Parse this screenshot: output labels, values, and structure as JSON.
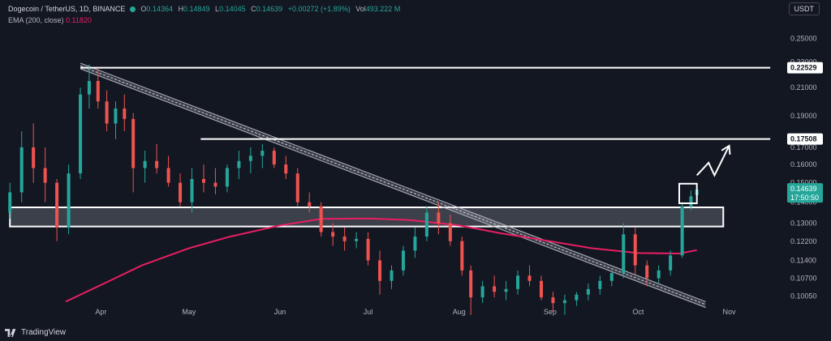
{
  "header": {
    "symbol": "Dogecoin / TetherUS, 1D, BINANCE",
    "open_label": "O",
    "open": "0.14364",
    "high_label": "H",
    "high": "0.14849",
    "low_label": "L",
    "low": "0.14045",
    "close_label": "C",
    "close": "0.14639",
    "change": "+0.00272 (+1.89%)",
    "vol_label": "Vol",
    "vol": "493.222 M",
    "ema_label": "EMA (200, close)",
    "ema_value": "0.11820"
  },
  "currency": "USDT",
  "brand": "TradingView",
  "colors": {
    "background": "#131722",
    "up": "#26a69a",
    "down": "#ef5350",
    "ema": "#e91e63",
    "level": "#ffffff",
    "zone_fill": "#d1d4dc"
  },
  "chart_data": {
    "type": "candlestick",
    "symbol": "Dogecoin / TetherUS, 1D, BINANCE",
    "x_tick_labels": [
      "Apr",
      "May",
      "Jun",
      "Jul",
      "Aug",
      "Sep",
      "Oct",
      "Nov"
    ],
    "y_axis_scale": "log",
    "y_tick_labels": [
      "0.25000",
      "0.23000",
      "0.21000",
      "0.19000",
      "0.17000",
      "0.16000",
      "0.15000",
      "0.14000",
      "0.13000",
      "0.12200",
      "0.11400",
      "0.10700",
      "0.10050"
    ],
    "ylim": [
      0.0975,
      0.265
    ],
    "price_labels": [
      {
        "value": 0.22529,
        "text": "0.22529"
      },
      {
        "value": 0.17508,
        "text": "0.17508"
      }
    ],
    "current_price": {
      "value": 0.14639,
      "text": "0.14639",
      "countdown": "17:50:50"
    },
    "horizontal_levels": [
      {
        "value": 0.22529,
        "from": "2024-03-25",
        "to": "2024-11-15"
      },
      {
        "value": 0.17508,
        "from": "2024-05-05",
        "to": "2024-11-15"
      }
    ],
    "support_zone": {
      "from": "2024-03-01",
      "to": "2024-10-30",
      "upper": 0.1375,
      "lower": 0.1285
    },
    "breakout_box": {
      "from": "2024-10-15",
      "to": "2024-10-21",
      "upper": 0.1495,
      "lower": 0.1395
    },
    "descending_channel": [
      {
        "from": [
          "2024-03-25",
          0.229
        ],
        "to": [
          "2024-10-24",
          0.0985
        ]
      },
      {
        "from": [
          "2024-03-25",
          0.2245
        ],
        "to": [
          "2024-10-24",
          0.0965
        ]
      }
    ],
    "projection_arrow": [
      [
        "2024-10-21",
        0.154
      ],
      [
        "2024-10-25",
        0.161
      ],
      [
        "2024-10-27",
        0.154
      ],
      [
        "2024-11-01",
        0.171
      ]
    ],
    "ema_200": [
      [
        "2024-03-20",
        0.0985
      ],
      [
        "2024-04-01",
        0.1045
      ],
      [
        "2024-04-15",
        0.112
      ],
      [
        "2024-05-01",
        0.119
      ],
      [
        "2024-05-15",
        0.124
      ],
      [
        "2024-06-01",
        0.129
      ],
      [
        "2024-06-15",
        0.132
      ],
      [
        "2024-07-01",
        0.1322
      ],
      [
        "2024-07-15",
        0.1315
      ],
      [
        "2024-08-01",
        0.129
      ],
      [
        "2024-08-15",
        0.1255
      ],
      [
        "2024-09-01",
        0.122
      ],
      [
        "2024-09-15",
        0.119
      ],
      [
        "2024-10-01",
        0.117
      ],
      [
        "2024-10-15",
        0.1168
      ],
      [
        "2024-10-21",
        0.1182
      ]
    ],
    "candles": [
      [
        "2024-03-01",
        0.135,
        0.15,
        0.132,
        0.145
      ],
      [
        "2024-03-05",
        0.145,
        0.18,
        0.14,
        0.17
      ],
      [
        "2024-03-09",
        0.17,
        0.185,
        0.15,
        0.158
      ],
      [
        "2024-03-13",
        0.158,
        0.17,
        0.14,
        0.15
      ],
      [
        "2024-03-17",
        0.15,
        0.152,
        0.122,
        0.128
      ],
      [
        "2024-03-21",
        0.128,
        0.16,
        0.125,
        0.155
      ],
      [
        "2024-03-25",
        0.155,
        0.21,
        0.152,
        0.205
      ],
      [
        "2024-03-28",
        0.205,
        0.228,
        0.195,
        0.215
      ],
      [
        "2024-03-31",
        0.215,
        0.225,
        0.195,
        0.2
      ],
      [
        "2024-04-03",
        0.2,
        0.208,
        0.18,
        0.185
      ],
      [
        "2024-04-06",
        0.185,
        0.2,
        0.175,
        0.195
      ],
      [
        "2024-04-09",
        0.195,
        0.205,
        0.18,
        0.188
      ],
      [
        "2024-04-12",
        0.188,
        0.192,
        0.145,
        0.158
      ],
      [
        "2024-04-16",
        0.158,
        0.168,
        0.15,
        0.162
      ],
      [
        "2024-04-20",
        0.162,
        0.172,
        0.155,
        0.158
      ],
      [
        "2024-04-24",
        0.158,
        0.165,
        0.148,
        0.15
      ],
      [
        "2024-04-28",
        0.15,
        0.155,
        0.138,
        0.14
      ],
      [
        "2024-05-02",
        0.14,
        0.158,
        0.135,
        0.152
      ],
      [
        "2024-05-06",
        0.152,
        0.16,
        0.145,
        0.15
      ],
      [
        "2024-05-10",
        0.15,
        0.158,
        0.144,
        0.148
      ],
      [
        "2024-05-14",
        0.148,
        0.16,
        0.145,
        0.158
      ],
      [
        "2024-05-18",
        0.158,
        0.168,
        0.152,
        0.162
      ],
      [
        "2024-05-22",
        0.162,
        0.17,
        0.155,
        0.165
      ],
      [
        "2024-05-26",
        0.165,
        0.172,
        0.158,
        0.168
      ],
      [
        "2024-05-30",
        0.168,
        0.17,
        0.158,
        0.16
      ],
      [
        "2024-06-03",
        0.16,
        0.165,
        0.152,
        0.155
      ],
      [
        "2024-06-07",
        0.155,
        0.158,
        0.138,
        0.14
      ],
      [
        "2024-06-11",
        0.14,
        0.145,
        0.135,
        0.138
      ],
      [
        "2024-06-15",
        0.138,
        0.14,
        0.124,
        0.126
      ],
      [
        "2024-06-19",
        0.126,
        0.13,
        0.12,
        0.124
      ],
      [
        "2024-06-23",
        0.124,
        0.128,
        0.118,
        0.122
      ],
      [
        "2024-06-27",
        0.122,
        0.126,
        0.119,
        0.123
      ],
      [
        "2024-07-01",
        0.123,
        0.126,
        0.112,
        0.114
      ],
      [
        "2024-07-05",
        0.114,
        0.118,
        0.101,
        0.106
      ],
      [
        "2024-07-09",
        0.106,
        0.112,
        0.103,
        0.11
      ],
      [
        "2024-07-13",
        0.11,
        0.12,
        0.108,
        0.118
      ],
      [
        "2024-07-17",
        0.118,
        0.128,
        0.115,
        0.124
      ],
      [
        "2024-07-21",
        0.124,
        0.138,
        0.122,
        0.135
      ],
      [
        "2024-07-25",
        0.135,
        0.14,
        0.125,
        0.13
      ],
      [
        "2024-07-29",
        0.13,
        0.134,
        0.12,
        0.122
      ],
      [
        "2024-08-02",
        0.122,
        0.124,
        0.108,
        0.11
      ],
      [
        "2024-08-05",
        0.11,
        0.112,
        0.094,
        0.1
      ],
      [
        "2024-08-09",
        0.1,
        0.106,
        0.098,
        0.104
      ],
      [
        "2024-08-13",
        0.104,
        0.108,
        0.1,
        0.102
      ],
      [
        "2024-08-17",
        0.102,
        0.106,
        0.099,
        0.103
      ],
      [
        "2024-08-21",
        0.103,
        0.11,
        0.101,
        0.108
      ],
      [
        "2024-08-25",
        0.108,
        0.112,
        0.104,
        0.106
      ],
      [
        "2024-08-29",
        0.106,
        0.108,
        0.099,
        0.1
      ],
      [
        "2024-09-02",
        0.1,
        0.102,
        0.095,
        0.098
      ],
      [
        "2024-09-06",
        0.098,
        0.101,
        0.094,
        0.099
      ],
      [
        "2024-09-10",
        0.099,
        0.102,
        0.097,
        0.101
      ],
      [
        "2024-09-14",
        0.101,
        0.105,
        0.099,
        0.103
      ],
      [
        "2024-09-18",
        0.103,
        0.108,
        0.101,
        0.106
      ],
      [
        "2024-09-22",
        0.106,
        0.11,
        0.104,
        0.109
      ],
      [
        "2024-09-26",
        0.109,
        0.13,
        0.107,
        0.125
      ],
      [
        "2024-09-30",
        0.125,
        0.128,
        0.108,
        0.112
      ],
      [
        "2024-10-04",
        0.112,
        0.114,
        0.104,
        0.107
      ],
      [
        "2024-10-08",
        0.107,
        0.112,
        0.105,
        0.11
      ],
      [
        "2024-10-12",
        0.11,
        0.118,
        0.108,
        0.116
      ],
      [
        "2024-10-16",
        0.116,
        0.14,
        0.115,
        0.138
      ],
      [
        "2024-10-19",
        0.138,
        0.146,
        0.136,
        0.143
      ],
      [
        "2024-10-21",
        0.14364,
        0.14849,
        0.14045,
        0.14639
      ]
    ]
  }
}
